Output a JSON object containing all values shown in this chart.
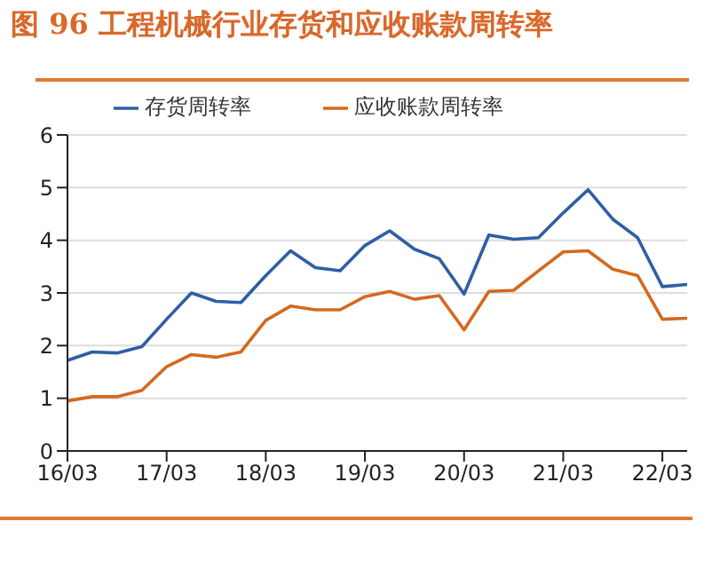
{
  "chart_data": {
    "type": "line",
    "title": "图 96 工程机械行业存货和应收账款周转率",
    "categories": [
      "16/03",
      null,
      null,
      null,
      "17/03",
      null,
      null,
      null,
      "18/03",
      null,
      null,
      null,
      "19/03",
      null,
      null,
      null,
      "20/03",
      null,
      null,
      null,
      "21/03",
      null,
      null,
      null,
      "22/03",
      null
    ],
    "series": [
      {
        "name": "存货周转率",
        "color": "#2e5fa3",
        "values": [
          1.72,
          1.88,
          1.86,
          1.98,
          2.5,
          3.0,
          2.84,
          2.82,
          3.33,
          3.8,
          3.48,
          3.42,
          3.9,
          4.18,
          3.83,
          3.65,
          2.98,
          4.1,
          4.02,
          4.05,
          4.52,
          4.96,
          4.4,
          4.05,
          3.12,
          3.16
        ]
      },
      {
        "name": "应收账款周转率",
        "color": "#d4691e",
        "values": [
          0.95,
          1.03,
          1.03,
          1.15,
          1.6,
          1.83,
          1.78,
          1.88,
          2.48,
          2.75,
          2.68,
          2.68,
          2.93,
          3.03,
          2.88,
          2.95,
          2.3,
          3.03,
          3.05,
          3.42,
          3.78,
          3.8,
          3.45,
          3.33,
          2.5,
          2.52
        ]
      }
    ],
    "ylim": [
      0,
      6
    ],
    "yticks": [
      0,
      1,
      2,
      3,
      4,
      5,
      6
    ],
    "grid": "y",
    "legend": "top",
    "marker": "none",
    "line_style": "solid"
  }
}
